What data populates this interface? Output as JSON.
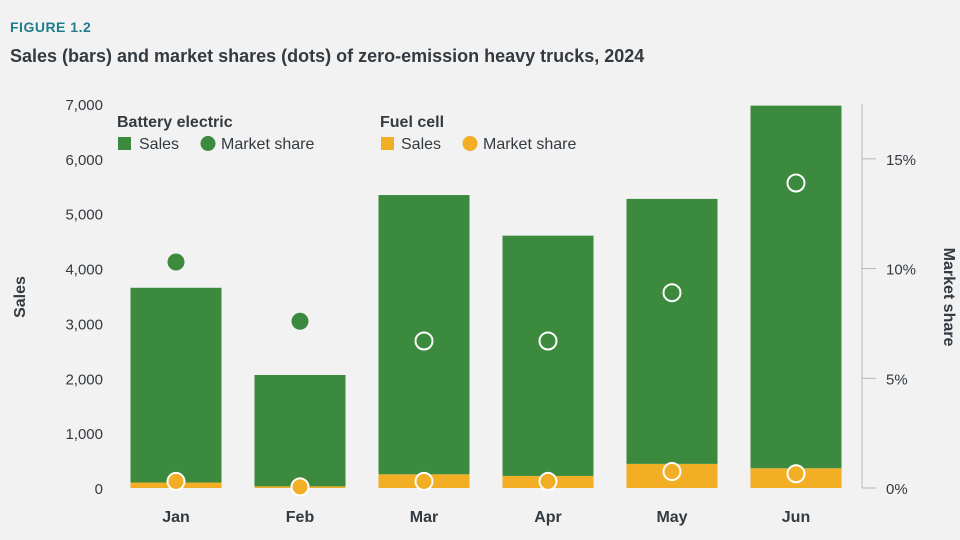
{
  "figure_label": "FIGURE 1.2",
  "chart_data": {
    "type": "bar",
    "title": "Sales (bars) and market shares (dots) of zero-emission heavy trucks, 2024",
    "categories": [
      "Jan",
      "Feb",
      "Mar",
      "Apr",
      "May",
      "Jun"
    ],
    "ylabel": "Sales",
    "y2label": "Market share",
    "ylim": [
      0,
      7000
    ],
    "y2lim": [
      0,
      0.175
    ],
    "yticks": [
      "0",
      "1,000",
      "2,000",
      "3,000",
      "4,000",
      "5,000",
      "6,000",
      "7,000"
    ],
    "y2ticks": [
      "0%",
      "5%",
      "10%",
      "15%"
    ],
    "stacked": true,
    "series": [
      {
        "name": "Sales",
        "group": "Fuel cell",
        "mark": "bar",
        "color": "#f2ae24",
        "values": [
          100,
          30,
          250,
          220,
          440,
          360
        ]
      },
      {
        "name": "Sales",
        "group": "Battery electric",
        "mark": "bar",
        "color": "#3b8a3e",
        "values": [
          3550,
          2030,
          5090,
          4380,
          4830,
          6610
        ]
      },
      {
        "name": "Market share",
        "group": "Battery electric",
        "mark": "dot",
        "axis": "right",
        "color": "#3b8a3e",
        "values": [
          0.103,
          0.076,
          0.067,
          0.067,
          0.089,
          0.139
        ]
      },
      {
        "name": "Market share",
        "group": "Fuel cell",
        "mark": "dot",
        "axis": "right",
        "color": "#f2ae24",
        "values": [
          0.003,
          0.0005,
          0.003,
          0.003,
          0.0075,
          0.0065
        ]
      }
    ],
    "legend": {
      "position": "top-left",
      "groups": [
        {
          "title": "Battery electric",
          "items": [
            {
              "label": "Sales",
              "shape": "square",
              "color": "#3b8a3e"
            },
            {
              "label": "Market share",
              "shape": "circle",
              "color": "#3b8a3e"
            }
          ]
        },
        {
          "title": "Fuel cell",
          "items": [
            {
              "label": "Sales",
              "shape": "square",
              "color": "#f2ae24"
            },
            {
              "label": "Market share",
              "shape": "circle",
              "color": "#f2ae24"
            }
          ]
        }
      ]
    },
    "grid": false
  }
}
